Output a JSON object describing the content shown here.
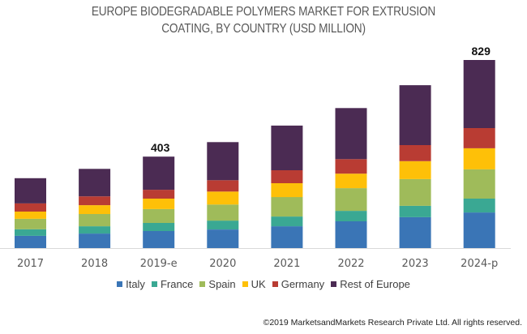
{
  "chart_data": {
    "type": "bar",
    "stacked": true,
    "title_lines": [
      "EUROPE BIODEGRADABLE POLYMERS  MARKET FOR EXTRUSION",
      "COATING, BY COUNTRY (USD MILLION)"
    ],
    "xlabel": "",
    "ylabel": "",
    "categories": [
      "2017",
      "2018",
      "2019-e",
      "2020",
      "2021",
      "2022",
      "2023",
      "2024-p"
    ],
    "series": [
      {
        "name": "Italy",
        "color": "#3a75b6",
        "values": [
          54,
          64,
          75,
          82,
          96,
          118,
          136,
          157
        ]
      },
      {
        "name": "France",
        "color": "#3aa893",
        "values": [
          29,
          32,
          36,
          39,
          43,
          46,
          50,
          61
        ]
      },
      {
        "name": "Spain",
        "color": "#9fbb5a",
        "values": [
          46,
          54,
          61,
          71,
          86,
          100,
          118,
          129
        ]
      },
      {
        "name": "UK",
        "color": "#fec008",
        "values": [
          32,
          39,
          46,
          57,
          61,
          64,
          79,
          93
        ]
      },
      {
        "name": "Germany",
        "color": "#b93c33",
        "values": [
          36,
          39,
          39,
          50,
          57,
          64,
          71,
          89
        ]
      },
      {
        "name": "Rest of Europe",
        "color": "#4b2b53",
        "values": [
          111,
          121,
          146,
          168,
          197,
          225,
          264,
          300
        ]
      }
    ],
    "data_labels": [
      {
        "category": "2019-e",
        "text": "403"
      },
      {
        "category": "2024-p",
        "text": "829"
      }
    ],
    "ylim": [
      0,
      829
    ],
    "y_axis_visible": false,
    "grid": false,
    "legend_position": "bottom"
  },
  "footer": "©2019 MarketsandMarkets Research Private Ltd. All rights reserved."
}
